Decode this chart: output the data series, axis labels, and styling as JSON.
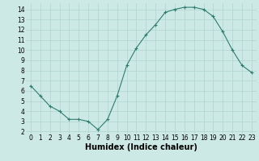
{
  "x": [
    0,
    1,
    2,
    3,
    4,
    5,
    6,
    7,
    8,
    9,
    10,
    11,
    12,
    13,
    14,
    15,
    16,
    17,
    18,
    19,
    20,
    21,
    22,
    23
  ],
  "y": [
    6.5,
    5.5,
    4.5,
    4.0,
    3.2,
    3.2,
    3.0,
    2.2,
    3.2,
    5.5,
    8.5,
    10.2,
    11.5,
    12.5,
    13.7,
    14.0,
    14.2,
    14.2,
    14.0,
    13.3,
    11.8,
    10.0,
    8.5,
    7.8
  ],
  "line_color": "#2e7d6e",
  "marker": "+",
  "marker_size": 3,
  "bg_color": "#cce9e5",
  "grid_color": "#afd4cf",
  "xlabel": "Humidex (Indice chaleur)",
  "xlim": [
    -0.5,
    23.5
  ],
  "ylim": [
    1.8,
    14.6
  ],
  "yticks": [
    2,
    3,
    4,
    5,
    6,
    7,
    8,
    9,
    10,
    11,
    12,
    13,
    14
  ],
  "xticks": [
    0,
    1,
    2,
    3,
    4,
    5,
    6,
    7,
    8,
    9,
    10,
    11,
    12,
    13,
    14,
    15,
    16,
    17,
    18,
    19,
    20,
    21,
    22,
    23
  ],
  "tick_label_fontsize": 5.5,
  "xlabel_fontsize": 7,
  "line_width": 0.8,
  "markeredgewidth": 0.8
}
